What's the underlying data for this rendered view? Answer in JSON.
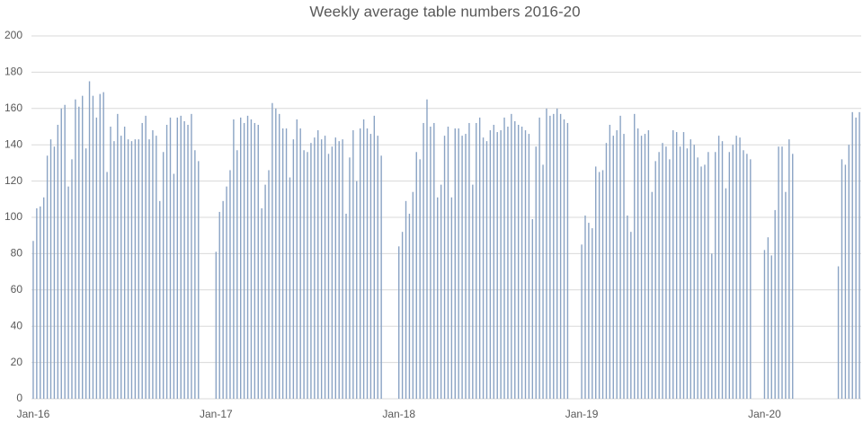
{
  "chart_data": {
    "type": "bar",
    "title": "Weekly average table numbers 2016-20",
    "categories": [
      "Jan-16",
      null,
      null,
      null,
      null,
      null,
      null,
      null,
      null,
      null,
      null,
      null,
      null,
      null,
      null,
      null,
      null,
      null,
      null,
      null,
      null,
      null,
      null,
      null,
      null,
      null,
      null,
      null,
      null,
      null,
      null,
      null,
      null,
      null,
      null,
      null,
      null,
      null,
      null,
      null,
      null,
      null,
      null,
      null,
      null,
      null,
      null,
      null,
      null,
      null,
      null,
      null,
      "Jan-17",
      null,
      null,
      null,
      null,
      null,
      null,
      null,
      null,
      null,
      null,
      null,
      null,
      null,
      null,
      null,
      null,
      null,
      null,
      null,
      null,
      null,
      null,
      null,
      null,
      null,
      null,
      null,
      null,
      null,
      null,
      null,
      null,
      null,
      null,
      null,
      null,
      null,
      null,
      null,
      null,
      null,
      null,
      null,
      null,
      null,
      null,
      null,
      null,
      null,
      null,
      null,
      "Jan-18",
      null,
      null,
      null,
      null,
      null,
      null,
      null,
      null,
      null,
      null,
      null,
      null,
      null,
      null,
      null,
      null,
      null,
      null,
      null,
      null,
      null,
      null,
      null,
      null,
      null,
      null,
      null,
      null,
      null,
      null,
      null,
      null,
      null,
      null,
      null,
      null,
      null,
      null,
      null,
      null,
      null,
      null,
      null,
      null,
      null,
      null,
      null,
      null,
      null,
      null,
      null,
      "Jan-19",
      null,
      null,
      null,
      null,
      null,
      null,
      null,
      null,
      null,
      null,
      null,
      null,
      null,
      null,
      null,
      null,
      null,
      null,
      null,
      null,
      null,
      null,
      null,
      null,
      null,
      null,
      null,
      null,
      null,
      null,
      null,
      null,
      null,
      null,
      null,
      null,
      null,
      null,
      null,
      null,
      null,
      null,
      null,
      null,
      null,
      null,
      null,
      null,
      null,
      null,
      null,
      "Jan-20",
      null,
      null,
      null,
      null,
      null,
      null,
      null,
      null,
      null,
      null,
      null,
      null,
      null,
      null,
      null,
      null,
      null,
      null,
      null,
      null,
      null,
      null,
      null,
      null,
      null,
      null,
      null
    ],
    "values": [
      87,
      105,
      106,
      111,
      134,
      143,
      139,
      151,
      160,
      162,
      117,
      132,
      165,
      161,
      167,
      138,
      175,
      167,
      155,
      168,
      169,
      125,
      150,
      142,
      157,
      145,
      150,
      143,
      142,
      143,
      143,
      152,
      156,
      143,
      148,
      145,
      109,
      136,
      151,
      155,
      124,
      155,
      156,
      153,
      151,
      157,
      137,
      131,
      null,
      null,
      null,
      null,
      81,
      103,
      109,
      117,
      126,
      154,
      137,
      155,
      152,
      156,
      154,
      152,
      151,
      105,
      118,
      126,
      163,
      160,
      157,
      149,
      149,
      122,
      143,
      154,
      149,
      137,
      136,
      141,
      144,
      148,
      143,
      145,
      135,
      139,
      144,
      142,
      143,
      102,
      133,
      148,
      120,
      149,
      154,
      149,
      146,
      156,
      145,
      134,
      null,
      null,
      null,
      null,
      84,
      92,
      109,
      102,
      114,
      136,
      132,
      152,
      165,
      150,
      152,
      111,
      118,
      145,
      150,
      111,
      149,
      149,
      145,
      146,
      152,
      118,
      152,
      155,
      144,
      142,
      148,
      151,
      147,
      148,
      155,
      150,
      157,
      153,
      151,
      150,
      148,
      146,
      99,
      139,
      155,
      129,
      160,
      156,
      157,
      160,
      157,
      154,
      152,
      null,
      null,
      null,
      85,
      101,
      97,
      94,
      128,
      125,
      126,
      141,
      151,
      145,
      148,
      156,
      146,
      101,
      92,
      157,
      149,
      145,
      146,
      148,
      114,
      131,
      136,
      141,
      139,
      132,
      148,
      147,
      139,
      147,
      138,
      143,
      140,
      133,
      128,
      129,
      136,
      80,
      136,
      145,
      142,
      116,
      136,
      140,
      145,
      144,
      137,
      135,
      132,
      null,
      null,
      null,
      82,
      89,
      79,
      104,
      139,
      139,
      114,
      143,
      135,
      null,
      null,
      null,
      null,
      null,
      null,
      null,
      null,
      null,
      null,
      null,
      null,
      73,
      132,
      129,
      140,
      158,
      155,
      158
    ],
    "color": "#8aa3c4",
    "ylim": [
      0,
      200
    ],
    "yticks": [
      0,
      20,
      40,
      60,
      80,
      100,
      120,
      140,
      160,
      180,
      200
    ],
    "grid": true
  }
}
